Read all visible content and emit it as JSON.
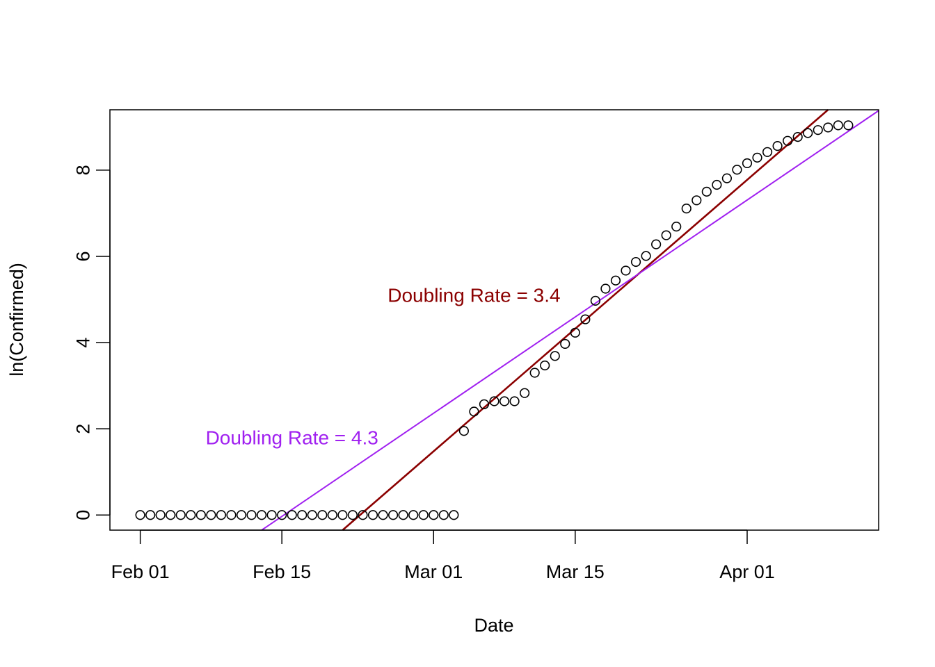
{
  "chart_data": {
    "type": "scatter",
    "title": "",
    "xlabel": "Date",
    "ylabel": "ln(Confirmed)",
    "x_axis": {
      "type": "date",
      "range": [
        "2020-01-29",
        "2020-04-14"
      ],
      "ticks": [
        {
          "value": "2020-02-01",
          "label": "Feb 01"
        },
        {
          "value": "2020-02-15",
          "label": "Feb 15"
        },
        {
          "value": "2020-03-01",
          "label": "Mar 01"
        },
        {
          "value": "2020-03-15",
          "label": "Mar 15"
        },
        {
          "value": "2020-04-01",
          "label": "Apr 01"
        }
      ]
    },
    "y_axis": {
      "range": [
        -0.35,
        9.4
      ],
      "ticks": [
        0,
        2,
        4,
        6,
        8
      ]
    },
    "grid": false,
    "series": [
      {
        "marker": "open-circle",
        "color": "#000000",
        "start_date": "2020-02-01",
        "values": [
          0,
          0,
          0,
          0,
          0,
          0,
          0,
          0,
          0,
          0,
          0,
          0,
          0,
          0,
          0,
          0,
          0,
          0,
          0,
          0,
          0,
          0,
          0,
          0,
          0,
          0,
          0,
          0,
          0,
          0,
          0,
          0,
          1.95,
          2.4,
          2.57,
          2.64,
          2.64,
          2.64,
          2.83,
          3.3,
          3.47,
          3.69,
          3.97,
          4.23,
          4.54,
          4.97,
          5.25,
          5.44,
          5.67,
          5.87,
          6.01,
          6.28,
          6.49,
          6.69,
          7.11,
          7.3,
          7.5,
          7.66,
          7.81,
          8.01,
          8.16,
          8.29,
          8.42,
          8.56,
          8.68,
          8.77,
          8.86,
          8.93,
          8.99,
          9.04,
          9.04
        ]
      }
    ],
    "fit_lines": [
      {
        "label": "Doubling Rate = 3.4",
        "color": "#8b0000",
        "points": [
          {
            "date": "2020-02-21",
            "y": -0.35
          },
          {
            "date": "2020-04-09",
            "y": 9.4
          }
        ]
      },
      {
        "label": "Doubling Rate = 4.3",
        "color": "#a020f0",
        "points": [
          {
            "date": "2020-02-13",
            "y": -0.35
          },
          {
            "date": "2020-04-14",
            "y": 9.38
          }
        ]
      }
    ],
    "annotations": [
      {
        "text": "Doubling Rate = 3.4",
        "color": "#8b0000",
        "date": "2020-03-05",
        "y": 5.1
      },
      {
        "text": "Doubling Rate = 4.3",
        "color": "#a020f0",
        "date": "2020-02-16",
        "y": 1.8
      }
    ]
  }
}
